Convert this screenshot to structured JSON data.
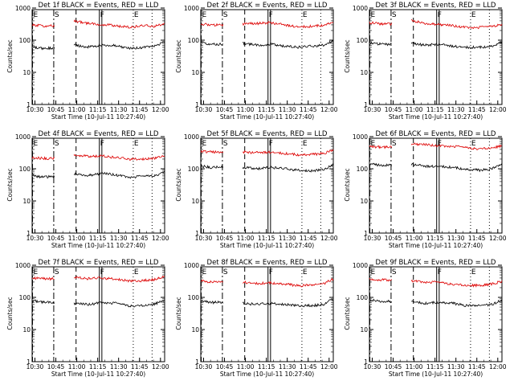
{
  "figure": {
    "ylabel": "Counts/sec",
    "xlabel": "Start Time (10-Jul-11 10:27:40)",
    "x_ticks": [
      "10:30",
      "10:45",
      "11:00",
      "11:15",
      "11:30",
      "11:45",
      "12:00"
    ],
    "y_ticks": [
      "1",
      "10",
      "100",
      "1000"
    ],
    "marker_letters": [
      "E",
      "S",
      "F",
      "E"
    ],
    "series_colors": {
      "events": "#000000",
      "lld": "#dd0000"
    }
  },
  "chart_data": [
    {
      "type": "line",
      "title": "Det 1f BLACK = Events, RED = LLD",
      "xlabel": "Start Time (10-Jul-11 10:27:40)",
      "ylabel": "Counts/sec",
      "x_ticks": [
        "10:30",
        "10:45",
        "11:00",
        "11:15",
        "11:30",
        "11:45",
        "12:00"
      ],
      "x_range_min": [
        0,
        95
      ],
      "ylim": [
        1,
        1000
      ],
      "y_scale": "log",
      "x_min": [
        0,
        8,
        16,
        22,
        30,
        40,
        50,
        60,
        70,
        80,
        88,
        95
      ],
      "series": [
        {
          "values": [
            60,
            55,
            58,
            null,
            70,
            62,
            70,
            68,
            55,
            60,
            68,
            85
          ],
          "color": "#000000"
        },
        {
          "values": [
            300,
            280,
            280,
            null,
            400,
            330,
            310,
            280,
            250,
            280,
            270,
            330
          ],
          "color": "#dd0000"
        }
      ]
    },
    {
      "type": "line",
      "title": "Det 2f BLACK = Events, RED = LLD",
      "xlabel": "Start Time (10-Jul-11 10:27:40)",
      "ylabel": "Counts/sec",
      "x_ticks": [
        "10:30",
        "10:45",
        "11:00",
        "11:15",
        "11:30",
        "11:45",
        "12:00"
      ],
      "x_range_min": [
        0,
        95
      ],
      "ylim": [
        1,
        1000
      ],
      "y_scale": "log",
      "x_min": [
        0,
        8,
        16,
        22,
        30,
        40,
        50,
        60,
        70,
        80,
        88,
        95
      ],
      "series": [
        {
          "values": [
            85,
            75,
            75,
            null,
            80,
            70,
            75,
            65,
            60,
            65,
            70,
            95
          ],
          "color": "#000000"
        },
        {
          "values": [
            320,
            300,
            290,
            null,
            320,
            330,
            350,
            300,
            260,
            270,
            290,
            370
          ],
          "color": "#dd0000"
        }
      ]
    },
    {
      "type": "line",
      "title": "Det 3f BLACK = Events, RED = LLD",
      "xlabel": "Start Time (10-Jul-11 10:27:40)",
      "ylabel": "Counts/sec",
      "x_ticks": [
        "10:30",
        "10:45",
        "11:00",
        "11:15",
        "11:30",
        "11:45",
        "12:00"
      ],
      "x_range_min": [
        0,
        95
      ],
      "ylim": [
        1,
        1000
      ],
      "y_scale": "log",
      "x_min": [
        0,
        8,
        16,
        22,
        30,
        40,
        50,
        60,
        70,
        80,
        88,
        95
      ],
      "series": [
        {
          "values": [
            85,
            75,
            75,
            null,
            80,
            70,
            75,
            65,
            60,
            60,
            65,
            85
          ],
          "color": "#000000"
        },
        {
          "values": [
            350,
            320,
            320,
            null,
            420,
            330,
            310,
            280,
            250,
            250,
            270,
            320
          ],
          "color": "#dd0000"
        }
      ]
    },
    {
      "type": "line",
      "title": "Det 4f BLACK = Events, RED = LLD",
      "xlabel": "Start Time (10-Jul-11 10:27:40)",
      "ylabel": "Counts/sec",
      "x_ticks": [
        "10:30",
        "10:45",
        "11:00",
        "11:15",
        "11:30",
        "11:45",
        "12:00"
      ],
      "x_range_min": [
        0,
        95
      ],
      "ylim": [
        1,
        1000
      ],
      "y_scale": "log",
      "x_min": [
        0,
        8,
        16,
        22,
        30,
        40,
        50,
        60,
        70,
        80,
        88,
        95
      ],
      "series": [
        {
          "values": [
            60,
            55,
            58,
            null,
            70,
            62,
            72,
            65,
            55,
            58,
            62,
            80
          ],
          "color": "#000000"
        },
        {
          "values": [
            220,
            210,
            210,
            null,
            280,
            240,
            250,
            220,
            200,
            200,
            210,
            260
          ],
          "color": "#dd0000"
        }
      ]
    },
    {
      "type": "line",
      "title": "Det 5f BLACK = Events, RED = LLD",
      "xlabel": "Start Time (10-Jul-11 10:27:40)",
      "ylabel": "Counts/sec",
      "x_ticks": [
        "10:30",
        "10:45",
        "11:00",
        "11:15",
        "11:30",
        "11:45",
        "12:00"
      ],
      "x_range_min": [
        0,
        95
      ],
      "ylim": [
        1,
        1000
      ],
      "y_scale": "log",
      "x_min": [
        0,
        8,
        16,
        22,
        30,
        40,
        50,
        60,
        70,
        80,
        88,
        95
      ],
      "series": [
        {
          "values": [
            120,
            110,
            115,
            null,
            110,
            100,
            110,
            100,
            90,
            85,
            95,
            130
          ],
          "color": "#000000"
        },
        {
          "values": [
            350,
            330,
            340,
            null,
            330,
            320,
            330,
            300,
            270,
            280,
            300,
            380
          ],
          "color": "#dd0000"
        }
      ]
    },
    {
      "type": "line",
      "title": "Det 6f BLACK = Events, RED = LLD",
      "xlabel": "Start Time (10-Jul-11 10:27:40)",
      "ylabel": "Counts/sec",
      "x_ticks": [
        "10:30",
        "10:45",
        "11:00",
        "11:15",
        "11:30",
        "11:45",
        "12:00"
      ],
      "x_range_min": [
        0,
        95
      ],
      "ylim": [
        1,
        1000
      ],
      "y_scale": "log",
      "x_min": [
        0,
        8,
        16,
        22,
        30,
        40,
        50,
        60,
        70,
        80,
        88,
        95
      ],
      "series": [
        {
          "values": [
            140,
            130,
            130,
            null,
            140,
            120,
            120,
            110,
            95,
            90,
            100,
            140
          ],
          "color": "#000000"
        },
        {
          "values": [
            500,
            470,
            470,
            null,
            600,
            560,
            520,
            500,
            450,
            420,
            440,
            520
          ],
          "color": "#dd0000"
        }
      ]
    },
    {
      "type": "line",
      "title": "Det 7f BLACK = Events, RED = LLD",
      "xlabel": "Start Time (10-Jul-11 10:27:40)",
      "ylabel": "Counts/sec",
      "x_ticks": [
        "10:30",
        "10:45",
        "11:00",
        "11:15",
        "11:30",
        "11:45",
        "12:00"
      ],
      "x_range_min": [
        0,
        95
      ],
      "ylim": [
        1,
        1000
      ],
      "y_scale": "log",
      "x_min": [
        0,
        8,
        16,
        22,
        30,
        40,
        50,
        60,
        70,
        80,
        88,
        95
      ],
      "series": [
        {
          "values": [
            80,
            70,
            70,
            null,
            65,
            60,
            70,
            65,
            55,
            55,
            62,
            85
          ],
          "color": "#000000"
        },
        {
          "values": [
            400,
            380,
            380,
            null,
            420,
            380,
            400,
            370,
            320,
            330,
            360,
            450
          ],
          "color": "#dd0000"
        }
      ]
    },
    {
      "type": "line",
      "title": "Det 8f BLACK = Events, RED = LLD",
      "xlabel": "Start Time (10-Jul-11 10:27:40)",
      "ylabel": "Counts/sec",
      "x_ticks": [
        "10:30",
        "10:45",
        "11:00",
        "11:15",
        "11:30",
        "11:45",
        "12:00"
      ],
      "x_range_min": [
        0,
        95
      ],
      "ylim": [
        1,
        1000
      ],
      "y_scale": "log",
      "x_min": [
        0,
        8,
        16,
        22,
        30,
        40,
        50,
        60,
        70,
        80,
        88,
        95
      ],
      "series": [
        {
          "values": [
            75,
            70,
            70,
            null,
            65,
            60,
            65,
            60,
            55,
            55,
            60,
            90
          ],
          "color": "#000000"
        },
        {
          "values": [
            330,
            300,
            320,
            null,
            300,
            270,
            280,
            260,
            230,
            240,
            260,
            380
          ],
          "color": "#dd0000"
        }
      ]
    },
    {
      "type": "line",
      "title": "Det 9f BLACK = Events, RED = LLD",
      "xlabel": "Start Time (10-Jul-11 10:27:40)",
      "ylabel": "Counts/sec",
      "x_ticks": [
        "10:30",
        "10:45",
        "11:00",
        "11:15",
        "11:30",
        "11:45",
        "12:00"
      ],
      "x_range_min": [
        0,
        95
      ],
      "ylim": [
        1,
        1000
      ],
      "y_scale": "log",
      "x_min": [
        0,
        8,
        16,
        22,
        30,
        40,
        50,
        60,
        70,
        80,
        88,
        95
      ],
      "series": [
        {
          "values": [
            85,
            75,
            75,
            null,
            75,
            65,
            70,
            65,
            55,
            55,
            60,
            85
          ],
          "color": "#000000"
        },
        {
          "values": [
            380,
            350,
            340,
            null,
            330,
            300,
            290,
            260,
            230,
            240,
            260,
            320
          ],
          "color": "#dd0000"
        }
      ]
    }
  ]
}
